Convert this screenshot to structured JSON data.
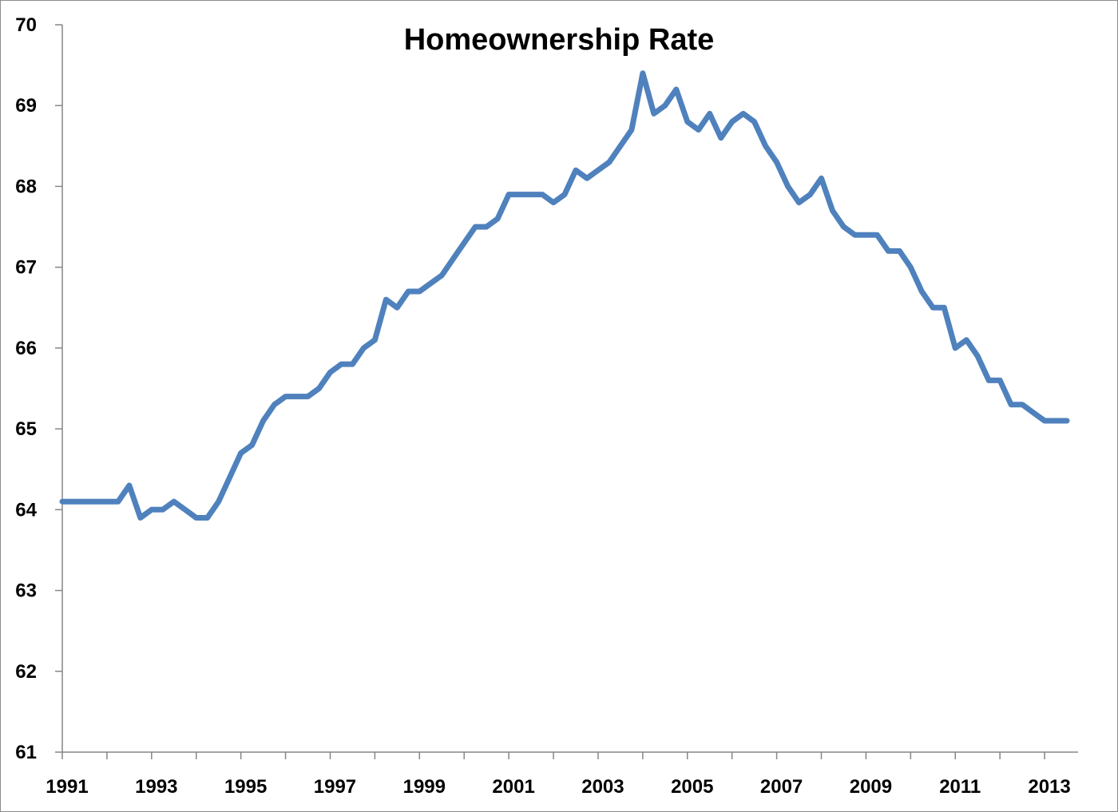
{
  "chart_data": {
    "type": "line",
    "title": "Homeownership Rate",
    "xlabel": "",
    "ylabel": "",
    "ylim": [
      61,
      70
    ],
    "xlim": [
      1991,
      2013.75
    ],
    "yticks": [
      "61",
      "62",
      "63",
      "64",
      "65",
      "66",
      "67",
      "68",
      "69",
      "70"
    ],
    "xticks": [
      "1991",
      "1993",
      "1995",
      "1997",
      "1999",
      "2001",
      "2003",
      "2005",
      "2007",
      "2009",
      "2011",
      "2013"
    ],
    "grid": false,
    "legend": "none",
    "line_color": "#4f81bd",
    "series": [
      {
        "x": [
          1991.0,
          1991.25,
          1991.5,
          1991.75,
          1992.0,
          1992.25,
          1992.5,
          1992.75,
          1993.0,
          1993.25,
          1993.5,
          1993.75,
          1994.0,
          1994.25,
          1994.5,
          1994.75,
          1995.0,
          1995.25,
          1995.5,
          1995.75,
          1996.0,
          1996.25,
          1996.5,
          1996.75,
          1997.0,
          1997.25,
          1997.5,
          1997.75,
          1998.0,
          1998.25,
          1998.5,
          1998.75,
          1999.0,
          1999.25,
          1999.5,
          1999.75,
          2000.0,
          2000.25,
          2000.5,
          2000.75,
          2001.0,
          2001.25,
          2001.5,
          2001.75,
          2002.0,
          2002.25,
          2002.5,
          2002.75,
          2003.0,
          2003.25,
          2003.5,
          2003.75,
          2004.0,
          2004.25,
          2004.5,
          2004.75,
          2005.0,
          2005.25,
          2005.5,
          2005.75,
          2006.0,
          2006.25,
          2006.5,
          2006.75,
          2007.0,
          2007.25,
          2007.5,
          2007.75,
          2008.0,
          2008.25,
          2008.5,
          2008.75,
          2009.0,
          2009.25,
          2009.5,
          2009.75,
          2010.0,
          2010.25,
          2010.5,
          2010.75,
          2011.0,
          2011.25,
          2011.5,
          2011.75,
          2012.0,
          2012.25,
          2012.5,
          2012.75,
          2013.0,
          2013.25,
          2013.5
        ],
        "values": [
          64.1,
          64.1,
          64.1,
          64.1,
          64.1,
          64.1,
          64.3,
          63.9,
          64.0,
          64.0,
          64.1,
          64.0,
          63.9,
          63.9,
          64.1,
          64.4,
          64.7,
          64.8,
          65.1,
          65.3,
          65.4,
          65.4,
          65.4,
          65.5,
          65.7,
          65.8,
          65.8,
          66.0,
          66.1,
          66.6,
          66.5,
          66.7,
          66.7,
          66.8,
          66.9,
          67.1,
          67.3,
          67.5,
          67.5,
          67.6,
          67.9,
          67.9,
          67.9,
          67.9,
          67.8,
          67.9,
          68.2,
          68.1,
          68.2,
          68.3,
          68.5,
          68.7,
          69.4,
          68.9,
          69.0,
          69.2,
          68.8,
          68.7,
          68.9,
          68.6,
          68.8,
          68.9,
          68.8,
          68.5,
          68.3,
          68.0,
          67.8,
          67.9,
          68.1,
          67.7,
          67.5,
          67.4,
          67.4,
          67.4,
          67.2,
          67.2,
          67.0,
          66.7,
          66.5,
          66.5,
          66.0,
          66.1,
          65.9,
          65.6,
          65.6,
          65.3,
          65.3,
          65.2,
          65.1,
          65.1,
          65.1
        ]
      }
    ]
  }
}
